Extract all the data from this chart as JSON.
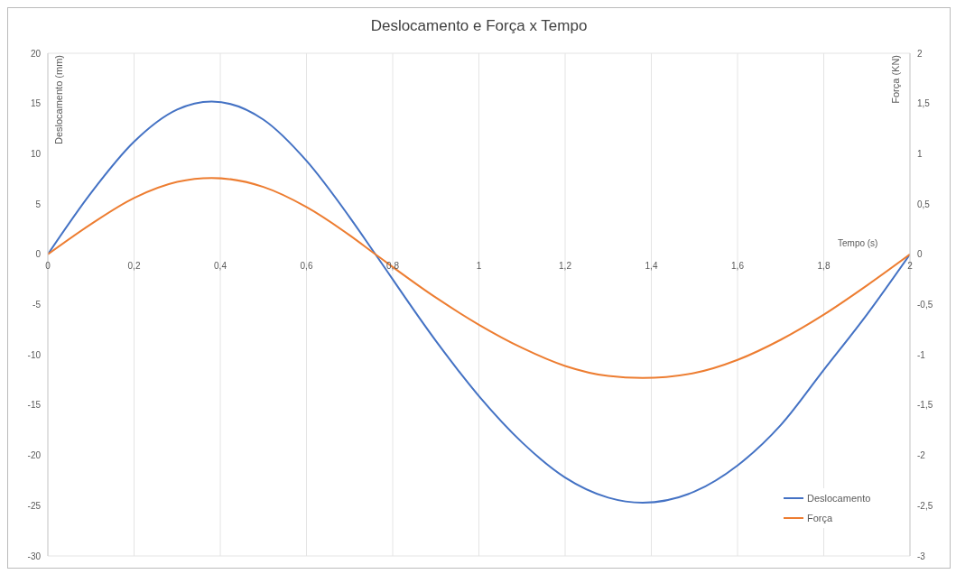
{
  "chart_data": {
    "type": "line",
    "title": "Deslocamento e Força x Tempo",
    "xlabel": "Tempo (s)",
    "ylabel": "Deslocamento (mm)",
    "y2label": "Força (KN)",
    "x": [
      0,
      0.1,
      0.2,
      0.3,
      0.38,
      0.5,
      0.6,
      0.7,
      0.76,
      0.9,
      1.0,
      1.1,
      1.2,
      1.3,
      1.38,
      1.5,
      1.6,
      1.7,
      1.8,
      1.9,
      2.0
    ],
    "series": [
      {
        "name": "Deslocamento",
        "color": "#4472c4",
        "values": [
          0,
          6.1,
          11.2,
          14.4,
          15.2,
          13.4,
          9.3,
          3.7,
          0,
          -8.6,
          -14.1,
          -18.7,
          -22.2,
          -24.2,
          -24.7,
          -23.6,
          -21.0,
          -17.0,
          -11.5,
          -6.0,
          0
        ]
      },
      {
        "name": "Força",
        "color": "#ed7d31",
        "axis": "y2",
        "values": [
          0,
          0.3,
          0.56,
          0.72,
          0.76,
          0.67,
          0.47,
          0.19,
          0,
          -0.43,
          -0.7,
          -0.93,
          -1.11,
          -1.21,
          -1.23,
          -1.18,
          -1.05,
          -0.85,
          -0.6,
          -0.31,
          0
        ]
      }
    ],
    "xlim": [
      0,
      2
    ],
    "xticks": [
      0,
      {
        "value": 0.2,
        "label": "0,2"
      },
      {
        "value": 0.4,
        "label": "0,4"
      },
      {
        "value": 0.6,
        "label": "0,6"
      },
      {
        "value": 0.8,
        "label": "0,8"
      },
      1,
      {
        "value": 1.2,
        "label": "1,2"
      },
      {
        "value": 1.4,
        "label": "1,4"
      },
      {
        "value": 1.6,
        "label": "1,6"
      },
      {
        "value": 1.8,
        "label": "1,8"
      },
      2
    ],
    "ylim": [
      -30,
      20
    ],
    "yticks": [
      -30,
      -25,
      -20,
      -15,
      -10,
      -5,
      0,
      5,
      10,
      15,
      20
    ],
    "y2lim": [
      -3,
      2
    ],
    "y2ticks": [
      -3,
      {
        "value": -2.5,
        "label": "-2,5"
      },
      -2,
      {
        "value": -1.5,
        "label": "-1,5"
      },
      -1,
      {
        "value": -0.5,
        "label": "-0,5"
      },
      0,
      {
        "value": 0.5,
        "label": "0,5"
      },
      1,
      {
        "value": 1.5,
        "label": "1,5"
      },
      2
    ],
    "grid": true,
    "legend": "bottom right",
    "marker": "none",
    "line_style": "solid"
  }
}
